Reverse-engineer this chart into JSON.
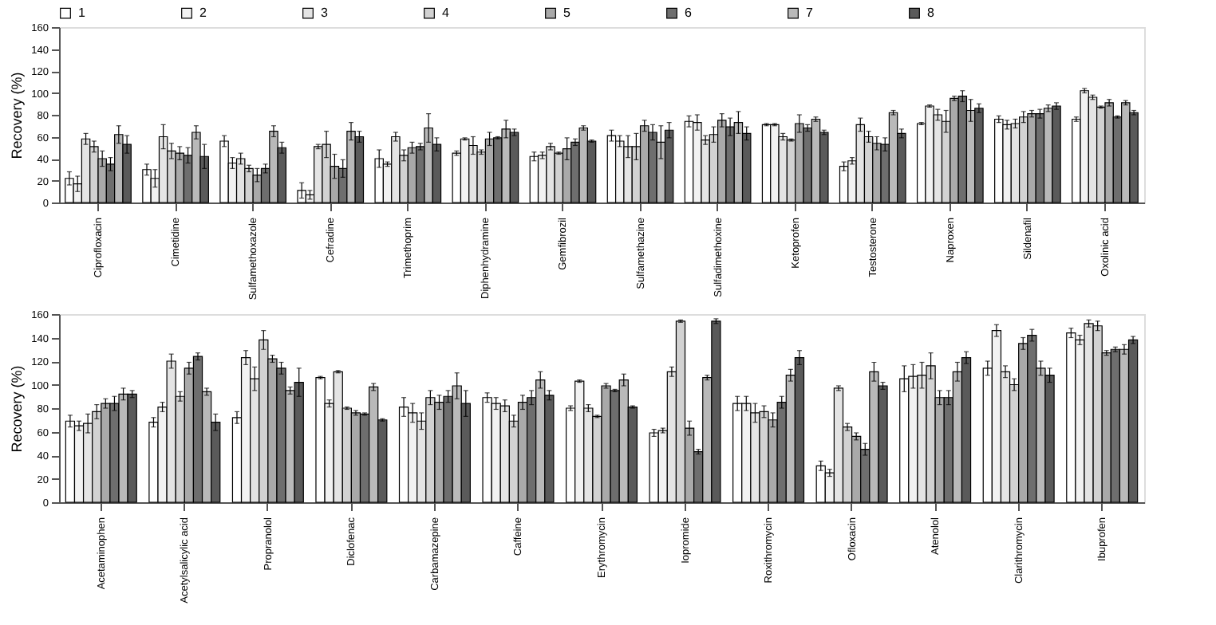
{
  "chart_data": [
    {
      "type": "bar",
      "ylabel": "Recovery (%)",
      "ylim": [
        0,
        160
      ],
      "yticks": [
        0,
        20,
        40,
        60,
        80,
        100,
        120,
        140,
        160
      ],
      "grid": false,
      "legend": "top",
      "categories": [
        "Ciprofloxacin",
        "Cimetidine",
        "Sulfamethoxazole",
        "Cefradine",
        "Trimethoprim",
        "Diphenhydramine",
        "Gemfibrozil",
        "Sulfamethazine",
        "Sulfadimethoxine",
        "Ketoprofen",
        "Testosterone",
        "Naproxen",
        "Sildenafil",
        "Oxolinic acid"
      ],
      "series": [
        {
          "name": "1",
          "color": "#ffffff",
          "values": [
            22,
            30,
            56,
            11,
            40,
            45,
            42,
            61,
            74,
            71,
            33,
            72,
            76,
            76
          ],
          "errors": [
            6,
            5,
            5,
            7,
            8,
            2,
            4,
            5,
            5,
            1,
            4,
            1,
            3,
            2
          ]
        },
        {
          "name": "2",
          "color": "#f2f2f2",
          "values": [
            17,
            22,
            36,
            7,
            35,
            58,
            43,
            56,
            73,
            71,
            38,
            88,
            71,
            102
          ],
          "errors": [
            7,
            8,
            5,
            4,
            2,
            1,
            3,
            5,
            7,
            1,
            3,
            1,
            4,
            2
          ]
        },
        {
          "name": "3",
          "color": "#e4e4e4",
          "values": [
            58,
            60,
            40,
            51,
            60,
            52,
            51,
            51,
            57,
            60,
            71,
            80,
            72,
            96
          ],
          "errors": [
            5,
            11,
            5,
            2,
            4,
            8,
            3,
            10,
            4,
            3,
            6,
            5,
            4,
            2
          ]
        },
        {
          "name": "4",
          "color": "#d2d2d2",
          "values": [
            51,
            47,
            31,
            53,
            43,
            46,
            45,
            51,
            62,
            57,
            60,
            74,
            78,
            87
          ],
          "errors": [
            5,
            7,
            3,
            12,
            5,
            2,
            1,
            12,
            7,
            1,
            5,
            10,
            5,
            1
          ]
        },
        {
          "name": "5",
          "color": "#a9a9a9",
          "values": [
            40,
            45,
            25,
            33,
            50,
            58,
            49,
            70,
            75,
            72,
            54,
            95,
            81,
            91
          ],
          "errors": [
            7,
            6,
            6,
            11,
            5,
            6,
            10,
            5,
            6,
            8,
            6,
            2,
            3,
            3
          ]
        },
        {
          "name": "6",
          "color": "#6e6e6e",
          "values": [
            35,
            43,
            31,
            31,
            51,
            59,
            55,
            64,
            69,
            68,
            53,
            97,
            81,
            78
          ],
          "errors": [
            6,
            7,
            4,
            8,
            3,
            1,
            3,
            7,
            8,
            3,
            6,
            5,
            4,
            1
          ]
        },
        {
          "name": "7",
          "color": "#b9b9b9",
          "values": [
            62,
            64,
            65,
            65,
            68,
            67,
            68,
            55,
            73,
            76,
            82,
            84,
            86,
            91
          ],
          "errors": [
            8,
            6,
            5,
            8,
            13,
            8,
            2,
            15,
            10,
            2,
            2,
            10,
            3,
            2
          ]
        },
        {
          "name": "8",
          "color": "#5a5a5a",
          "values": [
            53,
            42,
            50,
            60,
            53,
            64,
            56,
            66,
            63,
            64,
            63,
            86,
            88,
            82
          ],
          "errors": [
            8,
            11,
            5,
            5,
            6,
            3,
            1,
            7,
            6,
            2,
            4,
            4,
            3,
            2
          ]
        }
      ]
    },
    {
      "type": "bar",
      "ylabel": "Recovery (%)",
      "ylim": [
        0,
        160
      ],
      "yticks": [
        0,
        20,
        40,
        60,
        80,
        100,
        120,
        140,
        160
      ],
      "grid": false,
      "legend": false,
      "categories": [
        "Acetaminophen",
        "Acetylsalicylic acid",
        "Propranolol",
        "Diclofenac",
        "Carbamazepine",
        "Caffeine",
        "Erythromycin",
        "Iopromide",
        "Roxithromycin",
        "Ofloxacin",
        "Atenolol",
        "Clarithromycin",
        "Ibuprofen"
      ],
      "series": [
        {
          "color": "#ffffff",
          "values": [
            69,
            68,
            72,
            106,
            81,
            89,
            80,
            59,
            84,
            31,
            105,
            114,
            144
          ],
          "errors": [
            5,
            4,
            5,
            1,
            8,
            4,
            2,
            3,
            6,
            4,
            11,
            6,
            4
          ]
        },
        {
          "color": "#f2f2f2",
          "values": [
            65,
            81,
            123,
            84,
            76,
            84,
            103,
            61,
            84,
            25,
            107,
            146,
            138
          ],
          "errors": [
            4,
            4,
            6,
            3,
            8,
            5,
            1,
            2,
            6,
            3,
            10,
            5,
            4
          ]
        },
        {
          "color": "#e4e4e4",
          "values": [
            67,
            120,
            105,
            111,
            69,
            82,
            80,
            111,
            76,
            97,
            108,
            111,
            152
          ],
          "errors": [
            8,
            6,
            10,
            1,
            7,
            5,
            3,
            4,
            8,
            2,
            11,
            5,
            3
          ]
        },
        {
          "color": "#d2d2d2",
          "values": [
            77,
            90,
            138,
            80,
            89,
            69,
            73,
            154,
            77,
            64,
            116,
            100,
            150
          ],
          "errors": [
            6,
            4,
            8,
            1,
            6,
            5,
            1,
            1,
            5,
            3,
            11,
            5,
            4
          ]
        },
        {
          "color": "#a9a9a9",
          "values": [
            84,
            114,
            122,
            76,
            85,
            85,
            99,
            63,
            70,
            56,
            89,
            135,
            127
          ],
          "errors": [
            4,
            5,
            3,
            2,
            6,
            6,
            2,
            6,
            6,
            3,
            6,
            5,
            2
          ]
        },
        {
          "color": "#6e6e6e",
          "values": [
            84,
            124,
            114,
            75,
            90,
            89,
            95,
            43,
            85,
            45,
            89,
            142,
            130
          ],
          "errors": [
            6,
            3,
            5,
            1,
            5,
            6,
            1,
            2,
            5,
            5,
            6,
            5,
            2
          ]
        },
        {
          "color": "#b9b9b9",
          "values": [
            92,
            94,
            95,
            98,
            99,
            104,
            104,
            106,
            108,
            111,
            111,
            114,
            130
          ],
          "errors": [
            5,
            3,
            3,
            3,
            11,
            7,
            5,
            2,
            5,
            8,
            8,
            6,
            4
          ]
        },
        {
          "color": "#5a5a5a",
          "values": [
            92,
            68,
            102,
            70,
            84,
            91,
            81,
            154,
            123,
            99,
            123,
            108,
            138
          ],
          "errors": [
            3,
            7,
            12,
            1,
            11,
            4,
            1,
            2,
            6,
            3,
            5,
            6,
            3
          ]
        }
      ]
    }
  ]
}
